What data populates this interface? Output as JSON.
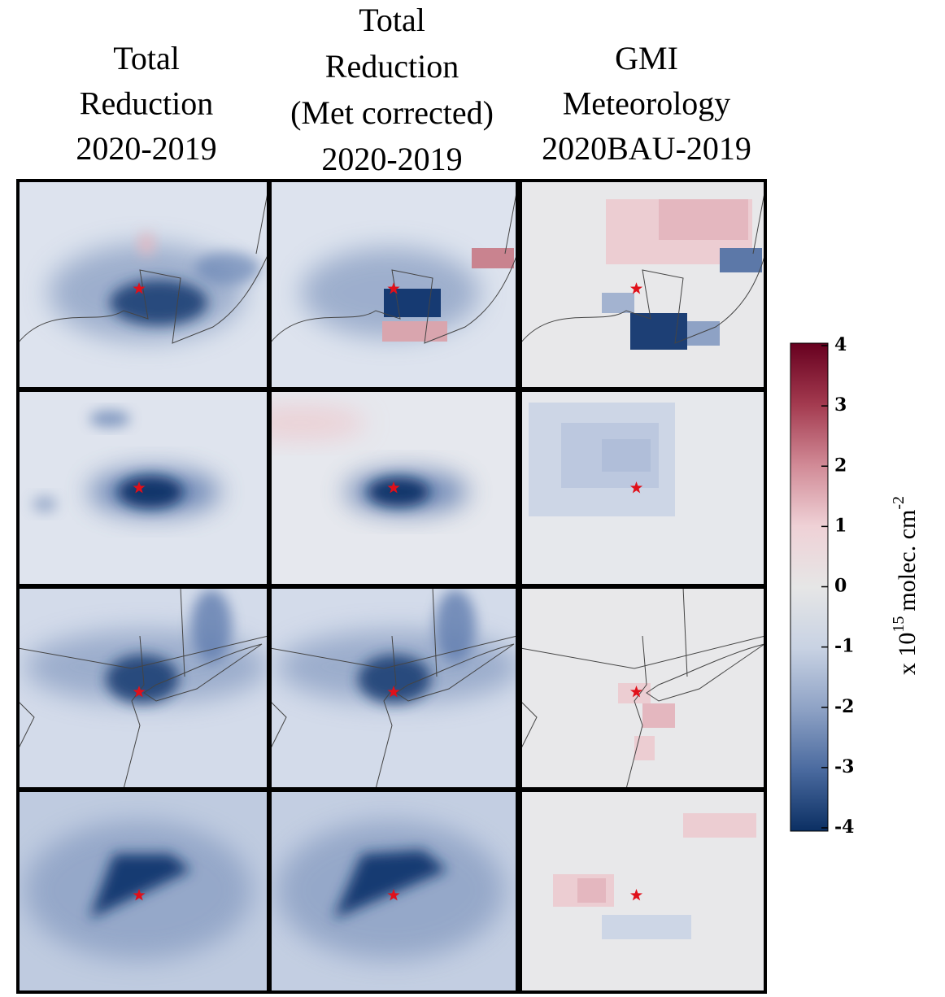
{
  "columns": [
    {
      "title_lines": [
        "Total",
        "Reduction",
        "2020-2019"
      ]
    },
    {
      "title_lines": [
        "Total",
        "Reduction",
        "(Met corrected)",
        "2020-2019"
      ]
    },
    {
      "title_lines": [
        "GMI",
        "Meteorology",
        "2020BAU-2019"
      ]
    }
  ],
  "colorbar": {
    "lim": [
      -4,
      4
    ],
    "ticks": [
      4,
      3,
      2,
      1,
      0,
      -1,
      -2,
      -3,
      -4
    ],
    "label": {
      "base": "x 10",
      "exp": "15",
      "unit": "molec. cm",
      "unit_exp": "-2"
    }
  }
}
